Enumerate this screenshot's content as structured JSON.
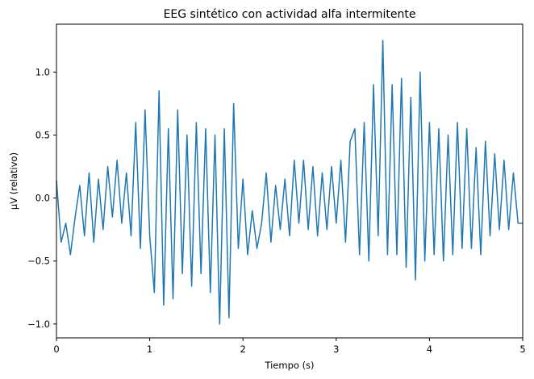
{
  "chart_data": {
    "type": "line",
    "title": "EEG sintético con actividad alfa intermitente",
    "xlabel": "Tiempo (s)",
    "ylabel": "µV (relativo)",
    "xlim": [
      0,
      5
    ],
    "ylim": [
      -1.11,
      1.38
    ],
    "x_ticks": [
      0,
      1,
      2,
      3,
      4,
      5
    ],
    "x_tick_labels": [
      "0",
      "1",
      "2",
      "3",
      "4",
      "5"
    ],
    "y_ticks": [
      -1.0,
      -0.5,
      0.0,
      0.5,
      1.0
    ],
    "y_tick_labels": [
      "−1.0",
      "−0.5",
      "0.0",
      "0.5",
      "1.0"
    ],
    "grid": false,
    "legend": "none",
    "line_color": "#1f77b4",
    "series": [
      {
        "x": [
          0.0,
          0.05,
          0.1,
          0.15,
          0.2,
          0.25,
          0.3,
          0.35,
          0.4,
          0.45,
          0.5,
          0.55,
          0.6,
          0.65,
          0.7,
          0.75,
          0.8,
          0.85,
          0.9,
          0.95,
          1.0,
          1.05,
          1.1,
          1.15,
          1.2,
          1.25,
          1.3,
          1.35,
          1.4,
          1.45,
          1.5,
          1.55,
          1.6,
          1.65,
          1.7,
          1.75,
          1.8,
          1.85,
          1.9,
          1.95,
          2.0,
          2.05,
          2.1,
          2.15,
          2.2,
          2.25,
          2.3,
          2.35,
          2.4,
          2.45,
          2.5,
          2.55,
          2.6,
          2.65,
          2.7,
          2.75,
          2.8,
          2.85,
          2.9,
          2.95,
          3.0,
          3.05,
          3.1,
          3.15,
          3.2,
          3.25,
          3.3,
          3.35,
          3.4,
          3.45,
          3.5,
          3.55,
          3.6,
          3.65,
          3.7,
          3.75,
          3.8,
          3.85,
          3.9,
          3.95,
          4.0,
          4.05,
          4.1,
          4.15,
          4.2,
          4.25,
          4.3,
          4.35,
          4.4,
          4.45,
          4.5,
          4.55,
          4.6,
          4.65,
          4.7,
          4.75,
          4.8,
          4.85,
          4.9,
          4.95,
          5.0
        ],
        "y": [
          0.14,
          -0.35,
          -0.2,
          -0.45,
          -0.15,
          0.1,
          -0.3,
          0.2,
          -0.35,
          0.15,
          -0.25,
          0.25,
          -0.15,
          0.3,
          -0.2,
          0.2,
          -0.3,
          0.6,
          -0.4,
          0.7,
          -0.3,
          -0.75,
          0.85,
          -0.85,
          0.55,
          -0.8,
          0.7,
          -0.6,
          0.5,
          -0.7,
          0.6,
          -0.6,
          0.55,
          -0.75,
          0.5,
          -1.0,
          0.55,
          -0.95,
          0.75,
          -0.4,
          0.15,
          -0.45,
          -0.1,
          -0.4,
          -0.2,
          0.2,
          -0.35,
          0.1,
          -0.25,
          0.15,
          -0.3,
          0.3,
          -0.2,
          0.3,
          -0.25,
          0.25,
          -0.3,
          0.2,
          -0.25,
          0.25,
          -0.2,
          0.3,
          -0.35,
          0.45,
          0.55,
          -0.45,
          0.6,
          -0.5,
          0.9,
          -0.3,
          1.25,
          -0.45,
          0.9,
          -0.45,
          0.95,
          -0.55,
          0.8,
          -0.65,
          1.0,
          -0.5,
          0.6,
          -0.45,
          0.55,
          -0.5,
          0.5,
          -0.45,
          0.6,
          -0.4,
          0.55,
          -0.4,
          0.4,
          -0.45,
          0.45,
          -0.3,
          0.35,
          -0.25,
          0.3,
          -0.25,
          0.2,
          -0.2,
          -0.2
        ]
      }
    ]
  }
}
